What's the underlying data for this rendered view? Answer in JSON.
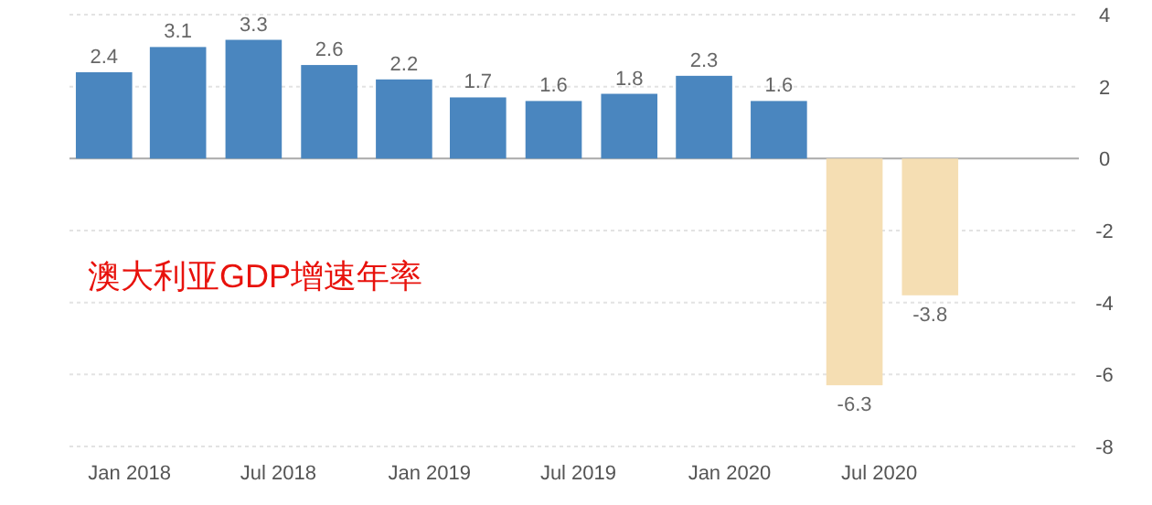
{
  "chart_data": {
    "type": "bar",
    "x": [
      "2017-12",
      "2018-03",
      "2018-06",
      "2018-09",
      "2018-12",
      "2019-03",
      "2019-06",
      "2019-09",
      "2019-12",
      "2020-03",
      "2020-06",
      "2020-09"
    ],
    "values": [
      2.4,
      3.1,
      3.3,
      2.6,
      2.2,
      1.7,
      1.6,
      1.8,
      2.3,
      1.6,
      -6.3,
      -3.8
    ],
    "colors": [
      "#4a86bf",
      "#4a86bf",
      "#4a86bf",
      "#4a86bf",
      "#4a86bf",
      "#4a86bf",
      "#4a86bf",
      "#4a86bf",
      "#4a86bf",
      "#4a86bf",
      "#f5deb3",
      "#f5deb3"
    ],
    "data_labels": true,
    "xlim": [
      "2017-10-20",
      "2021-03-01"
    ],
    "xticks": [
      {
        "value": "2018-01",
        "label": "Jan 2018"
      },
      {
        "value": "2018-07",
        "label": "Jul 2018"
      },
      {
        "value": "2019-01",
        "label": "Jan 2019"
      },
      {
        "value": "2019-07",
        "label": "Jul 2019"
      },
      {
        "value": "2020-01",
        "label": "Jan 2020"
      },
      {
        "value": "2020-07",
        "label": "Jul 2020"
      }
    ],
    "ylim": [
      -8,
      4
    ],
    "yticks": [
      4,
      2,
      0,
      -2,
      -4,
      -6,
      -8
    ],
    "grid": "y",
    "annotations": [
      "澳大利亚GDP增速年率"
    ]
  }
}
